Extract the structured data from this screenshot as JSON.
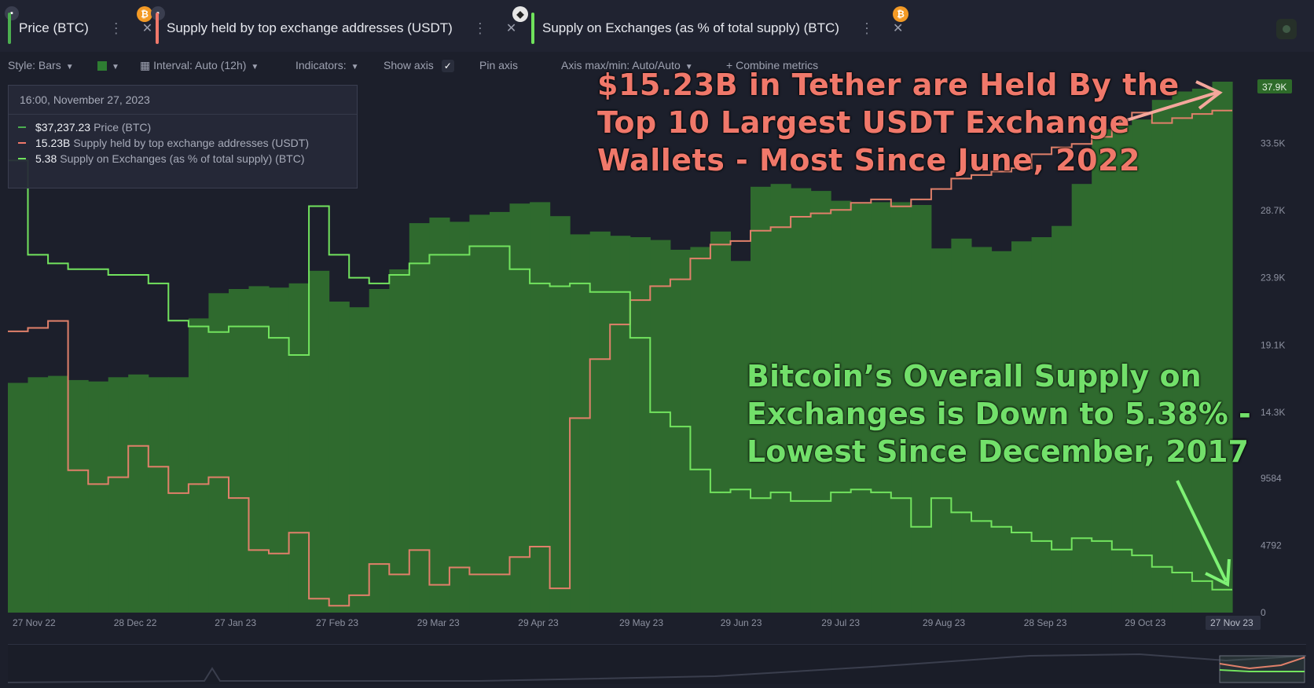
{
  "tabs": [
    {
      "label": "Price (BTC)",
      "color": "#4caf50",
      "coin": "B",
      "coin_color": "#f39a25"
    },
    {
      "label": "Supply held by top exchange addresses (USDT)",
      "color": "#f0786a",
      "coin": "",
      "coin_color": "#ffffff"
    },
    {
      "label": "Supply on Exchanges (as % of total supply) (BTC)",
      "color": "#6fe25c",
      "coin": "B",
      "coin_color": "#f39a25"
    }
  ],
  "toolbar": {
    "style": "Style: Bars",
    "interval": "Interval: Auto (12h)",
    "indicators": "Indicators:",
    "show_axis": "Show axis",
    "pin_axis": "Pin axis",
    "axis_maxmin": "Axis max/min: Auto/Auto",
    "combine": "Combine metrics"
  },
  "legend": {
    "date": "16:00, November 27, 2023",
    "rows": [
      {
        "value": "$37,237.23",
        "name": "Price (BTC)",
        "color": "#4caf50"
      },
      {
        "value": "15.23B",
        "name": "Supply held by top exchange addresses (USDT)",
        "color": "#f0786a"
      },
      {
        "value": "5.38",
        "name": "Supply on Exchanges (as % of total supply) (BTC)",
        "color": "#6fe25c"
      }
    ]
  },
  "annotations": {
    "red": [
      "$15.23B in Tether are Held By the",
      "Top 10 Largest USDT Exchange",
      "Wallets - Most Since June, 2022"
    ],
    "green": [
      "Bitcoin’s Overall Supply on",
      "Exchanges is Down to 5.38% -",
      "Lowest Since December, 2017"
    ]
  },
  "chart_data": {
    "type": "bar",
    "x_labels": [
      "27 Nov 22",
      "28 Dec 22",
      "27 Jan 23",
      "27 Feb 23",
      "29 Mar 23",
      "29 Apr 23",
      "29 May 23",
      "29 Jun 23",
      "29 Jul 23",
      "29 Aug 23",
      "28 Sep 23",
      "29 Oct 23",
      "27 Nov 23"
    ],
    "y_ticks": [
      "0",
      "4792",
      "9584",
      "14.3K",
      "19.1K",
      "23.9K",
      "28.7K",
      "33.5K",
      "37.9K"
    ],
    "current_price_label": "37.9K",
    "colors": {
      "price": "#2f6a2e",
      "usdt": "#e0806a",
      "supply": "#72e35e"
    },
    "price": [
      16400,
      16800,
      16900,
      16600,
      16500,
      16800,
      17000,
      16800,
      16800,
      21000,
      22800,
      23100,
      23300,
      23200,
      23500,
      24400,
      22200,
      21800,
      23100,
      24500,
      27800,
      28200,
      27900,
      28400,
      28600,
      29200,
      29300,
      28300,
      27000,
      27200,
      26900,
      26800,
      26600,
      25900,
      26100,
      27200,
      25100,
      30400,
      30600,
      30300,
      30100,
      29400,
      29200,
      29300,
      29300,
      29100,
      26000,
      26700,
      26100,
      25800,
      26500,
      26800,
      27600,
      30600,
      34500,
      34800,
      35200,
      36600,
      37200,
      37400,
      37900
    ],
    "usdt": [
      12.05,
      12.1,
      12.2,
      10.05,
      9.85,
      9.95,
      10.4,
      10.1,
      9.72,
      9.85,
      9.95,
      9.65,
      8.9,
      8.85,
      9.15,
      8.2,
      8.1,
      8.25,
      8.7,
      8.55,
      8.9,
      8.4,
      8.65,
      8.55,
      8.55,
      8.8,
      8.95,
      8.35,
      10.8,
      11.65,
      12.15,
      12.5,
      12.7,
      12.8,
      13.1,
      13.3,
      13.35,
      13.5,
      13.55,
      13.7,
      13.75,
      13.8,
      13.9,
      13.95,
      13.85,
      13.95,
      14.1,
      14.25,
      14.3,
      14.35,
      14.4,
      14.6,
      14.7,
      14.75,
      14.85,
      15.1,
      15.2,
      15.05,
      15.12,
      15.18,
      15.23
    ],
    "supply": [
      6.88,
      6.55,
      6.52,
      6.5,
      6.5,
      6.48,
      6.48,
      6.45,
      6.32,
      6.3,
      6.28,
      6.3,
      6.3,
      6.26,
      6.2,
      6.72,
      6.55,
      6.47,
      6.45,
      6.48,
      6.52,
      6.55,
      6.55,
      6.58,
      6.58,
      6.5,
      6.45,
      6.44,
      6.45,
      6.42,
      6.42,
      6.26,
      6.0,
      5.95,
      5.8,
      5.72,
      5.73,
      5.7,
      5.72,
      5.69,
      5.69,
      5.72,
      5.73,
      5.72,
      5.7,
      5.6,
      5.7,
      5.65,
      5.62,
      5.6,
      5.58,
      5.55,
      5.52,
      5.56,
      5.55,
      5.52,
      5.5,
      5.46,
      5.44,
      5.41,
      5.38
    ],
    "xlim": [
      "27 Nov 22",
      "27 Nov 23"
    ],
    "ylim": [
      0,
      37900
    ]
  }
}
